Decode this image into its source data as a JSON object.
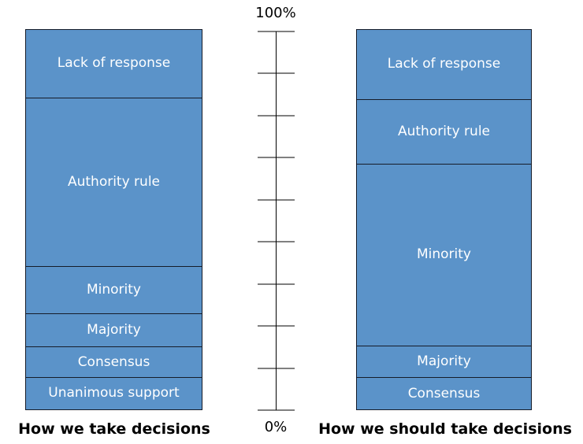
{
  "captions": {
    "left": "How we take decisions",
    "right": "How we should take decisions"
  },
  "axis": {
    "top_label": "100%",
    "bottom_label": "0%"
  },
  "colors": {
    "bar_fill": "#5b93c9",
    "segment_border": "#161c29",
    "segment_text": "#ffffff",
    "caption_text": "#000000",
    "axis_line": "#000000"
  },
  "chart_data": {
    "type": "bar",
    "subtype": "stacked-100-percent-columns",
    "title": "",
    "xlabel": "",
    "ylabel": "",
    "axis": {
      "range": [
        0,
        100
      ],
      "unit": "%",
      "top_label": "100%",
      "bottom_label": "0%",
      "tick_count": 10,
      "position": "center-between-bars",
      "grid": false
    },
    "legend": "none",
    "bars": [
      {
        "caption": "How we take decisions",
        "segments_top_to_bottom": [
          {
            "label": "Lack of response",
            "value": 18.0
          },
          {
            "label": "Authority rule",
            "value": 44.6
          },
          {
            "label": "Minority",
            "value": 12.4
          },
          {
            "label": "Majority",
            "value": 8.7
          },
          {
            "label": "Consensus",
            "value": 7.9
          },
          {
            "label": "Unanimous support",
            "value": 8.4
          }
        ]
      },
      {
        "caption": "How we should take decisions",
        "segments_top_to_bottom": [
          {
            "label": "Lack of response",
            "value": 18.4
          },
          {
            "label": "Authority rule",
            "value": 16.9
          },
          {
            "label": "Minority",
            "value": 48.1
          },
          {
            "label": "Majority",
            "value": 8.3
          },
          {
            "label": "Consensus",
            "value": 8.3
          }
        ]
      }
    ]
  }
}
